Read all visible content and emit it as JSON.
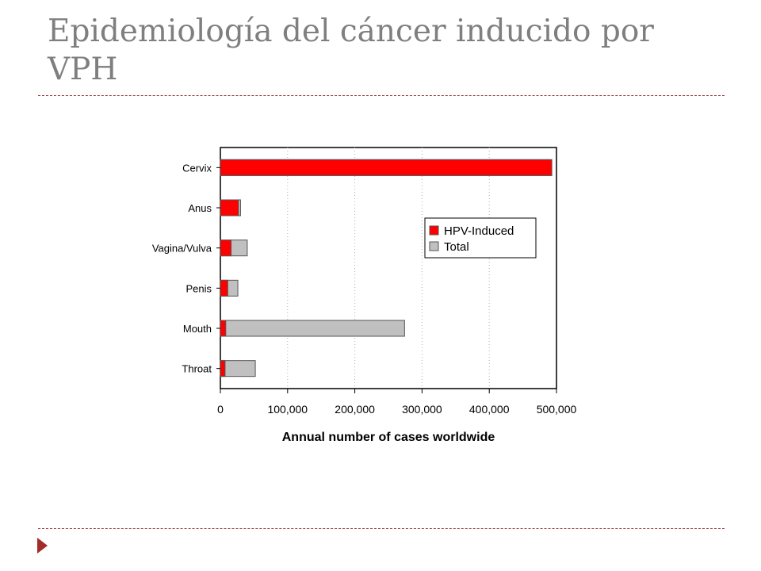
{
  "slide": {
    "title_line1": "Epidemiología del cáncer inducido por",
    "title_line2": "VPH"
  },
  "chart_data": {
    "type": "bar",
    "orientation": "horizontal",
    "stacked": "overlay",
    "categories": [
      "Cervix",
      "Anus",
      "Vagina/Vulva",
      "Penis",
      "Mouth",
      "Throat"
    ],
    "series": [
      {
        "name": "HPV-Induced",
        "color": "#ff0000",
        "values": [
          493000,
          27000,
          16000,
          11000,
          8000,
          7000
        ]
      },
      {
        "name": "Total",
        "color": "#c0c0c0",
        "values": [
          493000,
          30000,
          40000,
          26000,
          274000,
          52000
        ]
      }
    ],
    "xlabel": "Annual number of cases worldwide",
    "ylabel": "",
    "xlim": [
      0,
      500000
    ],
    "xticks": [
      {
        "value": 0,
        "label": "0"
      },
      {
        "value": 100000,
        "label": "100,000"
      },
      {
        "value": 200000,
        "label": "200,000"
      },
      {
        "value": 300000,
        "label": "300,000"
      },
      {
        "value": 400000,
        "label": "400,000"
      },
      {
        "value": 500000,
        "label": "500,000"
      }
    ],
    "grid": "vertical-dotted",
    "legend_position": "right-upper"
  }
}
